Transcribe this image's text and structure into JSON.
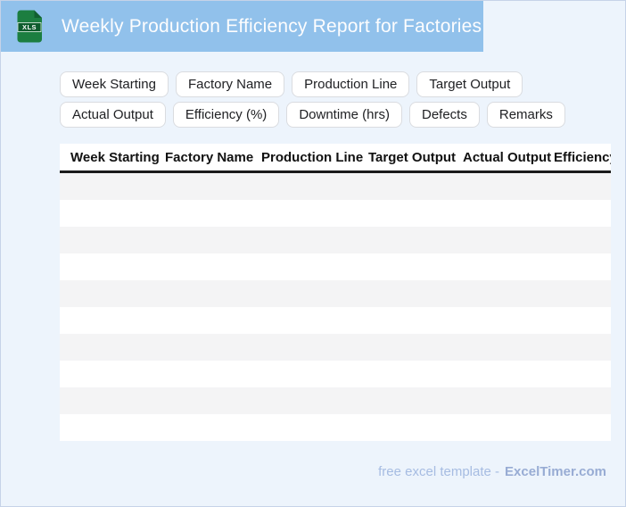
{
  "header": {
    "title": "Weekly Production Efficiency Report for Factories",
    "icon": "xls-file-icon",
    "icon_label": "XLS"
  },
  "chips": [
    "Week Starting",
    "Factory Name",
    "Production Line",
    "Target Output",
    "Actual Output",
    "Efficiency (%)",
    "Downtime (hrs)",
    "Defects",
    "Remarks"
  ],
  "table": {
    "headers": [
      "Week Starting",
      "Factory Name",
      "Production Line",
      "Target Output",
      "Actual Output",
      "Efficiency (%)"
    ],
    "visible_row_count": 10,
    "rows_are_empty": true
  },
  "footer": {
    "text": "free excel template -",
    "brand": "ExcelTimer.com"
  },
  "colors": {
    "topbar_bg": "#91c1eb",
    "page_bg": "#edf4fc",
    "canvas_border": "#c6d3e8",
    "icon_green": "#1c7e40",
    "icon_band_green": "#0e5c2d",
    "chip_border": "#dadce0",
    "chip_text": "#202124",
    "header_rule": "#1b1b1b",
    "row_stripe": "#f4f4f5",
    "footer_text": "#a6bce2",
    "footer_brand": "#98acd4"
  }
}
